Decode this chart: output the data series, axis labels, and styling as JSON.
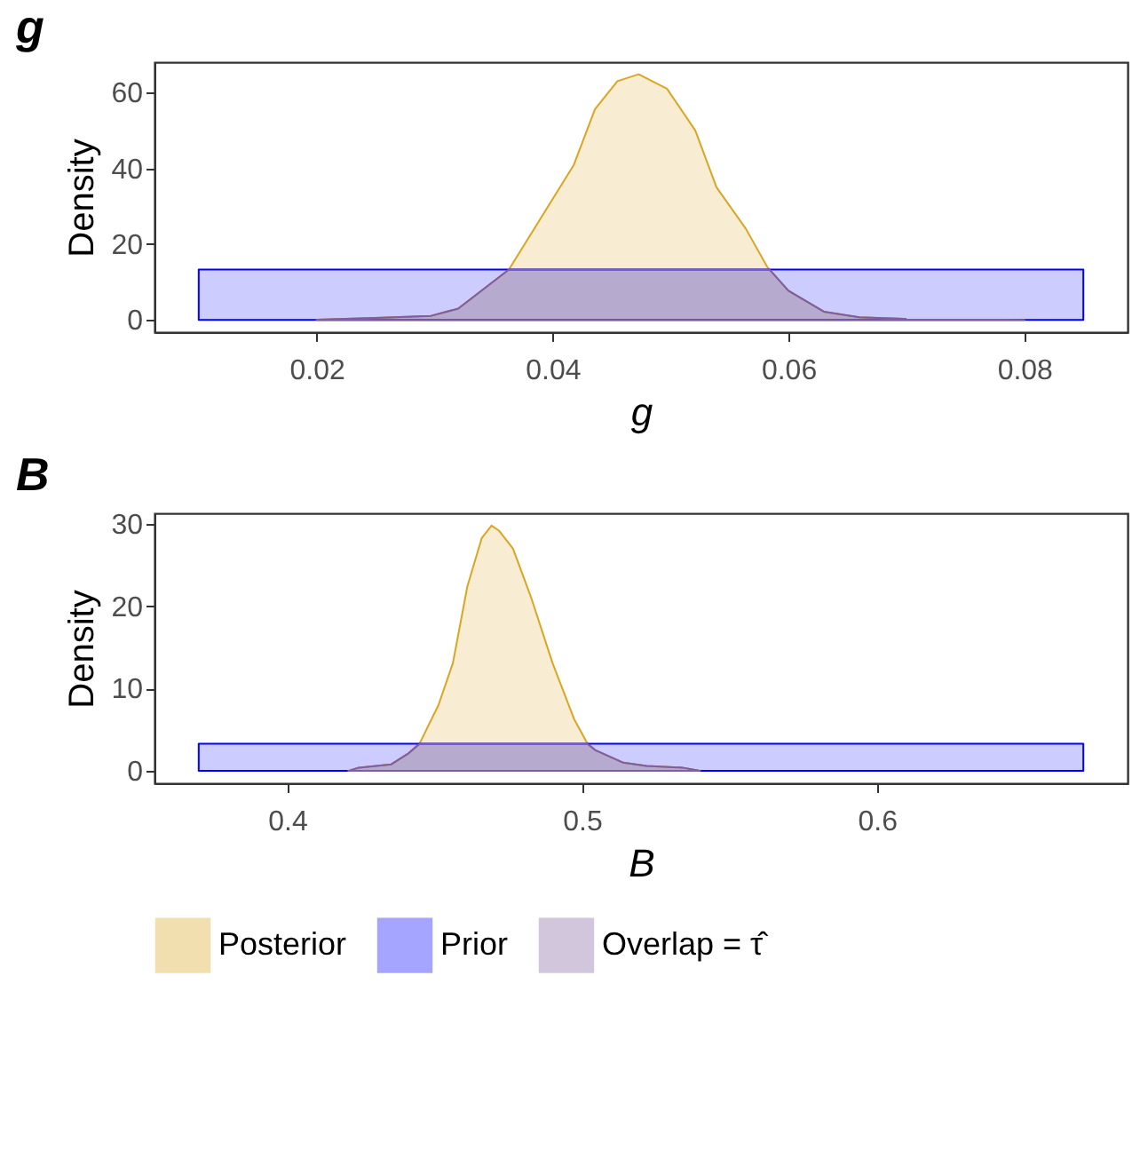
{
  "chart_data": [
    {
      "type": "area",
      "title": "g",
      "xlabel": "g",
      "ylabel": "Density",
      "xlim": [
        0.00625,
        0.08875
      ],
      "xticks": [
        {
          "value": 0.02,
          "label": "0.02"
        },
        {
          "value": 0.04,
          "label": "0.04"
        },
        {
          "value": 0.06,
          "label": "0.06"
        },
        {
          "value": 0.08,
          "label": "0.08"
        }
      ],
      "ylim": [
        -3.2,
        68
      ],
      "yticks": [
        0,
        20,
        40,
        60
      ],
      "grid": false,
      "legend": "bottom",
      "marker": "none",
      "series": [
        {
          "name": "Posterior",
          "color": "#daa520",
          "x": [
            0.02,
            0.0255,
            0.0297,
            0.032,
            0.0363,
            0.0418,
            0.0436,
            0.0455,
            0.0473,
            0.0497,
            0.0521,
            0.0539,
            0.0564,
            0.0582,
            0.06,
            0.063,
            0.066,
            0.07,
            0.08
          ],
          "values": [
            0.1,
            0.6,
            1.1,
            3,
            13.3,
            40.9,
            55.6,
            63,
            64.8,
            61,
            50,
            35,
            24,
            14,
            7.7,
            2.2,
            0.7,
            0.3,
            0
          ]
        },
        {
          "name": "Prior",
          "color": "#0000ff",
          "x": [
            0.01,
            0.085
          ],
          "values": [
            13.3,
            13.3
          ]
        },
        {
          "name": "Overlap = τ̂",
          "color": "#7f5fa0",
          "x": [
            0.02,
            0.0255,
            0.0297,
            0.032,
            0.0363,
            0.0584,
            0.06,
            0.063,
            0.066,
            0.07,
            0.08
          ],
          "values": [
            0.1,
            0.6,
            1.1,
            3,
            13.3,
            13.3,
            7.7,
            2.2,
            0.7,
            0.3,
            0
          ]
        }
      ]
    },
    {
      "type": "area",
      "title": "B",
      "xlabel": "B",
      "ylabel": "Density",
      "xlim": [
        0.355,
        0.685
      ],
      "xticks": [
        {
          "value": 0.4,
          "label": "0.4"
        },
        {
          "value": 0.5,
          "label": "0.5"
        },
        {
          "value": 0.6,
          "label": "0.6"
        }
      ],
      "ylim": [
        -1.5,
        31.3
      ],
      "yticks": [
        0,
        10,
        20,
        30
      ],
      "grid": false,
      "legend": "bottom",
      "marker": "none",
      "series": [
        {
          "name": "Posterior",
          "color": "#daa520",
          "x": [
            0.4207,
            0.4243,
            0.4353,
            0.441,
            0.445,
            0.4513,
            0.4562,
            0.4611,
            0.466,
            0.4693,
            0.4718,
            0.4766,
            0.4827,
            0.49,
            0.4973,
            0.5017,
            0.5046,
            0.514,
            0.5219,
            0.534,
            0.54
          ],
          "values": [
            0,
            0.4,
            0.8,
            2.1,
            3.4,
            8,
            13.1,
            22.4,
            28.3,
            29.8,
            29.2,
            27,
            21.1,
            13.1,
            6.3,
            3.4,
            2.5,
            1,
            0.6,
            0.4,
            0
          ]
        },
        {
          "name": "Prior",
          "color": "#0000ff",
          "x": [
            0.37,
            0.67
          ],
          "values": [
            3.3,
            3.3
          ]
        },
        {
          "name": "Overlap = τ̂",
          "color": "#7f5fa0",
          "x": [
            0.4207,
            0.4243,
            0.4353,
            0.441,
            0.445,
            0.5017,
            0.5046,
            0.514,
            0.5219,
            0.534,
            0.54
          ],
          "values": [
            0,
            0.4,
            0.8,
            2.1,
            3.3,
            3.3,
            2.5,
            1,
            0.6,
            0.4,
            0
          ]
        }
      ]
    }
  ]
}
